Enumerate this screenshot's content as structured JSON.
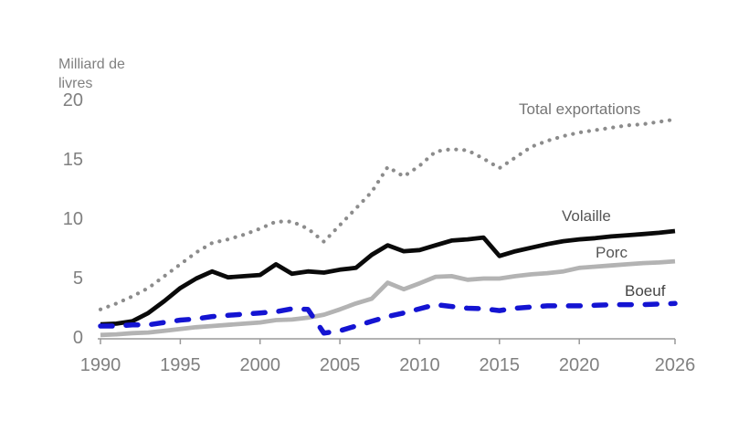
{
  "chart_data": {
    "type": "line",
    "title": "",
    "ylabel_lines": [
      "Milliard de",
      "livres"
    ],
    "xlim": [
      1990,
      2026
    ],
    "ylim": [
      0,
      20
    ],
    "x_ticks": [
      1990,
      1995,
      2000,
      2005,
      2010,
      2015,
      2020,
      2026
    ],
    "y_ticks": [
      0,
      5,
      10,
      15,
      20
    ],
    "grid": false,
    "legend_position": "inline-labels",
    "x": [
      1990,
      1991,
      1992,
      1993,
      1994,
      1995,
      1996,
      1997,
      1998,
      1999,
      2000,
      2001,
      2002,
      2003,
      2004,
      2005,
      2006,
      2007,
      2008,
      2009,
      2010,
      2011,
      2012,
      2013,
      2014,
      2015,
      2016,
      2017,
      2018,
      2019,
      2020,
      2021,
      2022,
      2023,
      2024,
      2025,
      2026
    ],
    "series": [
      {
        "name": "Total exportations",
        "style": "dotted",
        "color": "#8c8c8c",
        "label_color": "#757575",
        "values": [
          2.4,
          2.9,
          3.5,
          4.2,
          5.2,
          6.2,
          7.2,
          8.0,
          8.3,
          8.7,
          9.2,
          9.8,
          9.8,
          9.2,
          8.1,
          9.5,
          10.9,
          12.3,
          14.4,
          13.6,
          14.5,
          15.7,
          15.9,
          15.8,
          15.1,
          14.3,
          15.2,
          16.1,
          16.6,
          17.0,
          17.3,
          17.5,
          17.7,
          17.9,
          18.0,
          18.2,
          18.4
        ]
      },
      {
        "name": "Volaille",
        "style": "solid",
        "color": "#0a0a0a",
        "label_color": "#555555",
        "values": [
          1.15,
          1.2,
          1.4,
          2.1,
          3.1,
          4.2,
          5.0,
          5.6,
          5.1,
          5.2,
          5.3,
          6.2,
          5.4,
          5.6,
          5.5,
          5.75,
          5.9,
          7.0,
          7.8,
          7.3,
          7.4,
          7.8,
          8.2,
          8.3,
          8.45,
          6.9,
          7.3,
          7.6,
          7.9,
          8.15,
          8.3,
          8.4,
          8.55,
          8.65,
          8.75,
          8.85,
          9.0
        ]
      },
      {
        "name": "Porc",
        "style": "solid",
        "color": "#b3b3b3",
        "label_color": "#555555",
        "values": [
          0.25,
          0.3,
          0.4,
          0.45,
          0.6,
          0.75,
          0.9,
          1.0,
          1.1,
          1.2,
          1.3,
          1.5,
          1.55,
          1.7,
          1.95,
          2.4,
          2.9,
          3.3,
          4.65,
          4.1,
          4.6,
          5.15,
          5.2,
          4.9,
          5.0,
          5.0,
          5.2,
          5.35,
          5.45,
          5.6,
          5.9,
          6.0,
          6.1,
          6.2,
          6.3,
          6.35,
          6.45
        ]
      },
      {
        "name": "Boeuf",
        "style": "dashed",
        "color": "#1414d2",
        "label_color": "#444444",
        "values": [
          1.0,
          1.0,
          1.1,
          1.1,
          1.3,
          1.5,
          1.6,
          1.8,
          1.9,
          2.0,
          2.1,
          2.2,
          2.45,
          2.4,
          0.4,
          0.6,
          1.0,
          1.4,
          1.8,
          2.1,
          2.45,
          2.8,
          2.65,
          2.5,
          2.45,
          2.3,
          2.5,
          2.6,
          2.7,
          2.7,
          2.7,
          2.75,
          2.8,
          2.8,
          2.8,
          2.85,
          2.9
        ]
      }
    ],
    "axis_color": "#999999",
    "tick_text_color": "#808080"
  }
}
